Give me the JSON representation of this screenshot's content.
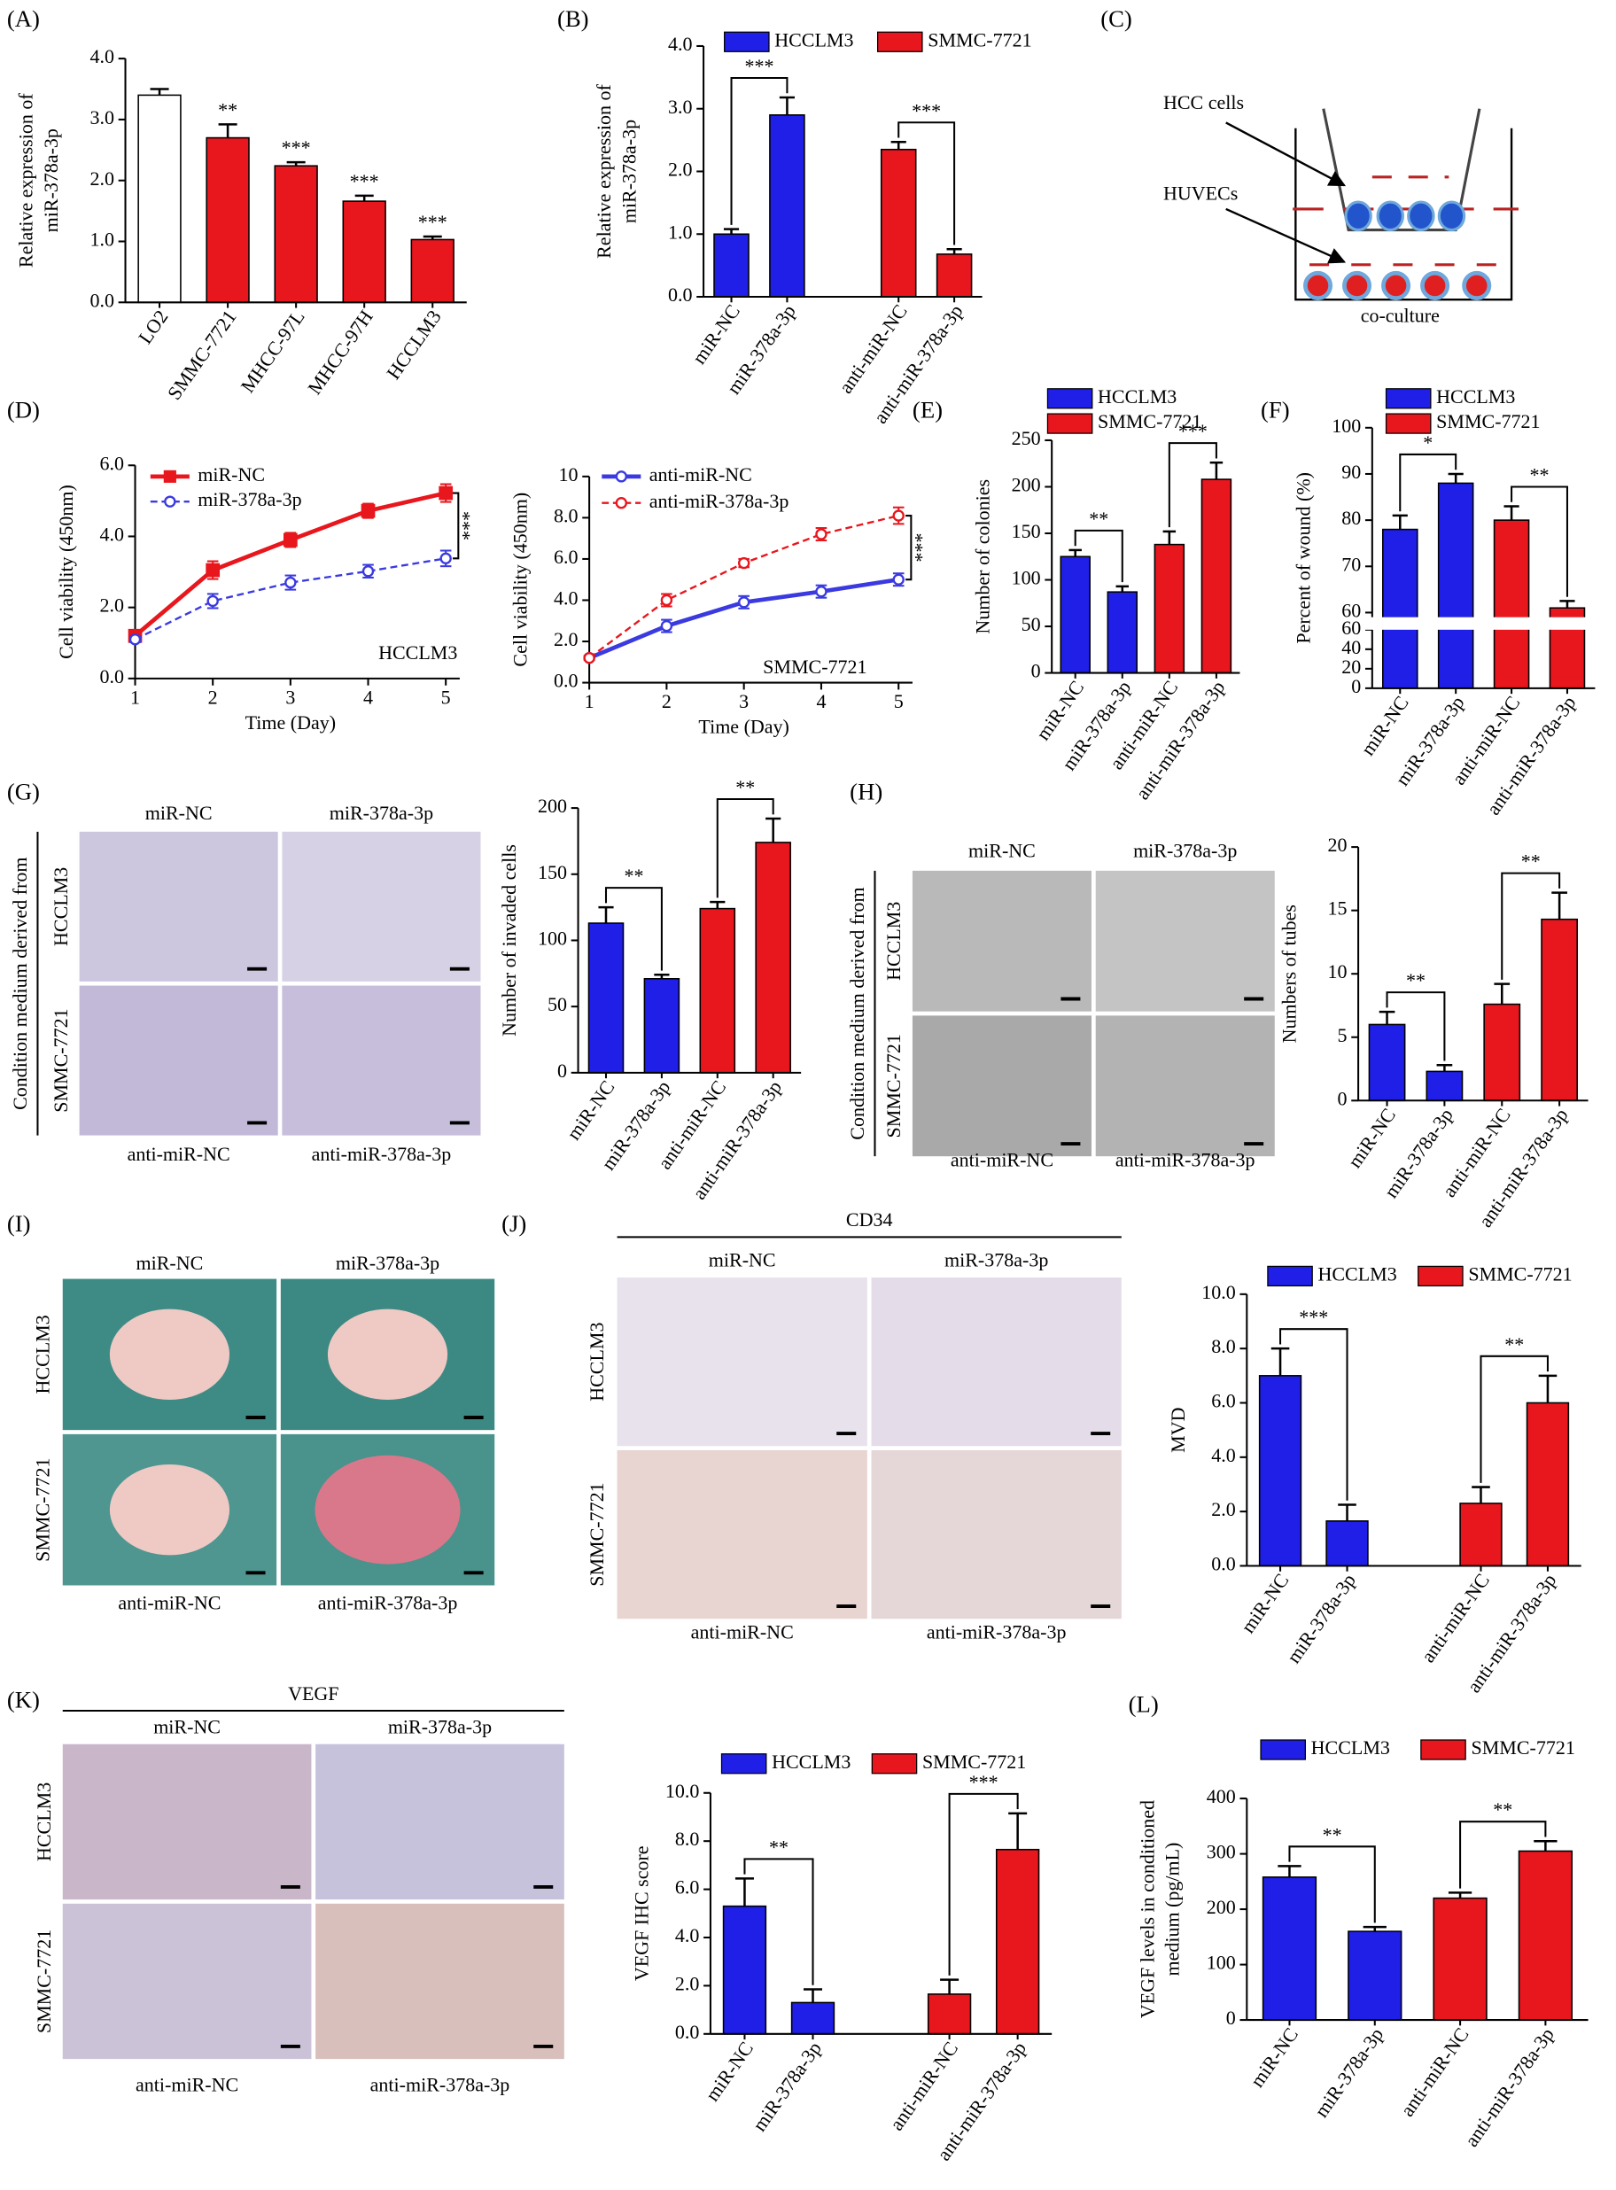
{
  "chart_data": [
    {
      "type": "bar",
      "panel": "(A)",
      "y_label": [
        "Relative expression of",
        "miR-378a-3p"
      ],
      "categories": [
        "LO2",
        "SMMC-7721",
        "MHCC-97L",
        "MHCC-97H",
        "HCCLM3"
      ],
      "values": [
        3.4,
        2.7,
        2.24,
        1.66,
        1.03
      ],
      "errors": [
        0.1,
        0.22,
        0.06,
        0.09,
        0.05
      ],
      "colors": [
        "#ffffff",
        "#e8161d",
        "#e8161d",
        "#e8161d",
        "#e8161d"
      ],
      "significance": [
        null,
        "**",
        "***",
        "***",
        "***"
      ],
      "ylim": [
        0,
        4
      ],
      "yticks": [
        {
          "value": 0,
          "label": "0.0"
        },
        {
          "value": 1,
          "label": "1.0"
        },
        {
          "value": 2,
          "label": "2.0"
        },
        {
          "value": 3,
          "label": "3.0"
        },
        {
          "value": 4,
          "label": "4.0"
        }
      ]
    },
    {
      "type": "bar",
      "panel": "(B)",
      "y_label": [
        "Relative expression of",
        "miR-378a-3p"
      ],
      "categories": [
        "miR-NC",
        "miR-378a-3p",
        "anti-miR-NC",
        "anti-miR-378a-3p"
      ],
      "series": [
        {
          "name": "HCCLM3",
          "color": "#1f1fe8",
          "values": [
            1.0,
            2.9,
            null,
            null
          ],
          "errors": [
            0.08,
            0.28,
            null,
            null
          ],
          "significance": "***"
        },
        {
          "name": "SMMC-7721",
          "color": "#e8161d",
          "values": [
            null,
            null,
            2.35,
            0.68
          ],
          "errors": [
            null,
            null,
            0.12,
            0.08
          ],
          "significance": "***"
        }
      ],
      "ylim": [
        0,
        4
      ],
      "yticks": [
        {
          "value": 0,
          "label": "0.0"
        },
        {
          "value": 1,
          "label": "1.0"
        },
        {
          "value": 2,
          "label": "2.0"
        },
        {
          "value": 3,
          "label": "3.0"
        },
        {
          "value": 4,
          "label": "4.0"
        }
      ]
    },
    {
      "type": "line",
      "panel": "(D)",
      "y_label": "Cell viability (450nm)",
      "x_label": "Time (Day)",
      "annotation": "HCCLM3",
      "significance": "***",
      "x": [
        1,
        2,
        3,
        4,
        5
      ],
      "xlim": [
        1,
        5
      ],
      "xticks": [
        1,
        2,
        3,
        4,
        5
      ],
      "series": [
        {
          "name": "miR-NC",
          "color": "#e8161d",
          "dashed": false,
          "marker": "square",
          "values": [
            1.2,
            3.05,
            3.9,
            4.72,
            5.22
          ],
          "errors": [
            0.08,
            0.25,
            0.2,
            0.2,
            0.25
          ]
        },
        {
          "name": "miR-378a-3p",
          "color": "#3a3ae0",
          "dashed": true,
          "marker": "circle",
          "values": [
            1.1,
            2.18,
            2.7,
            3.02,
            3.38
          ],
          "errors": [
            0.08,
            0.2,
            0.2,
            0.18,
            0.22
          ]
        }
      ],
      "ylim": [
        0,
        6
      ],
      "yticks": [
        {
          "value": 0,
          "label": "0.0"
        },
        {
          "value": 2,
          "label": "2.0"
        },
        {
          "value": 4,
          "label": "4.0"
        },
        {
          "value": 6,
          "label": "6.0"
        }
      ]
    },
    {
      "type": "line",
      "y_label": "Cell viability (450nm)",
      "x_label": "Time (Day)",
      "annotation": "SMMC-7721",
      "significance": "***",
      "x": [
        1,
        2,
        3,
        4,
        5
      ],
      "xlim": [
        1,
        5
      ],
      "xticks": [
        1,
        2,
        3,
        4,
        5
      ],
      "series": [
        {
          "name": "anti-miR-NC",
          "color": "#3a3ae0",
          "dashed": false,
          "marker": "circle",
          "values": [
            1.2,
            2.75,
            3.9,
            4.42,
            5.0
          ],
          "errors": [
            0.1,
            0.3,
            0.3,
            0.3,
            0.3
          ]
        },
        {
          "name": "anti-miR-378a-3p",
          "color": "#e8161d",
          "dashed": true,
          "marker": "circle",
          "values": [
            1.2,
            4.0,
            5.8,
            7.2,
            8.1
          ],
          "errors": [
            0.1,
            0.3,
            0.2,
            0.3,
            0.4
          ]
        }
      ],
      "ylim": [
        0,
        10
      ],
      "yticks": [
        {
          "value": 0,
          "label": "0.0"
        },
        {
          "value": 2,
          "label": "2.0"
        },
        {
          "value": 4,
          "label": "4.0"
        },
        {
          "value": 6,
          "label": "6.0"
        },
        {
          "value": 8,
          "label": "8.0"
        },
        10
      ]
    },
    {
      "type": "bar",
      "panel": "(E)",
      "y_label": "Number of colonies",
      "categories": [
        "miR-NC",
        "miR-378a-3p",
        "anti-miR-NC",
        "anti-miR-378a-3p"
      ],
      "series": [
        {
          "name": "HCCLM3",
          "color": "#1f1fe8",
          "values": [
            125,
            87,
            null,
            null
          ],
          "errors": [
            7,
            6,
            null,
            null
          ],
          "significance": "**"
        },
        {
          "name": "SMMC-7721",
          "color": "#e8161d",
          "values": [
            null,
            null,
            138,
            208
          ],
          "errors": [
            null,
            null,
            14,
            18
          ],
          "significance": "***"
        }
      ],
      "ylim": [
        0,
        250
      ],
      "yticks": [
        0,
        50,
        100,
        150,
        200,
        250
      ]
    },
    {
      "type": "bar",
      "panel": "(F)",
      "y_label": "Percent of wound (%)",
      "categories": [
        "miR-NC",
        "miR-378a-3p",
        "anti-miR-NC",
        "anti-miR-378a-3p"
      ],
      "series": [
        {
          "name": "HCCLM3",
          "color": "#1f1fe8",
          "values": [
            78,
            88,
            null,
            null
          ],
          "errors": [
            3,
            2,
            null,
            null
          ],
          "significance": "*"
        },
        {
          "name": "SMMC-7721",
          "color": "#e8161d",
          "values": [
            null,
            null,
            80,
            61
          ],
          "errors": [
            null,
            null,
            3,
            1.5
          ],
          "significance": "**"
        }
      ],
      "segments": [
        {
          "ylim": [
            0,
            60
          ],
          "yticks": [
            0,
            20,
            40,
            60
          ]
        },
        {
          "ylim": [
            59,
            100
          ],
          "yticks": [
            60,
            70,
            80,
            90,
            100
          ]
        }
      ]
    },
    {
      "type": "bar",
      "y_label": "Number of invaded cells",
      "categories": [
        "miR-NC",
        "miR-378a-3p",
        "anti-miR-NC",
        "anti-miR-378a-3p"
      ],
      "series": [
        {
          "color": "#1f1fe8",
          "values": [
            113,
            71,
            null,
            null
          ],
          "errors": [
            12,
            3,
            null,
            null
          ],
          "significance": "**"
        },
        {
          "color": "#e8161d",
          "values": [
            null,
            null,
            124,
            174
          ],
          "errors": [
            null,
            null,
            5,
            18
          ],
          "significance": "**"
        }
      ],
      "ylim": [
        0,
        200
      ],
      "yticks": [
        0,
        50,
        100,
        150,
        200
      ]
    },
    {
      "type": "bar",
      "y_label": "Numbers of tubes",
      "categories": [
        "miR-NC",
        "miR-378a-3p",
        "anti-miR-NC",
        "anti-miR-378a-3p"
      ],
      "series": [
        {
          "color": "#1f1fe8",
          "values": [
            6,
            2.3,
            null,
            null
          ],
          "errors": [
            1,
            0.5,
            null,
            null
          ],
          "significance": "**"
        },
        {
          "color": "#e8161d",
          "values": [
            null,
            null,
            7.6,
            14.3
          ],
          "errors": [
            null,
            null,
            1.6,
            2.1
          ],
          "significance": "**"
        }
      ],
      "ylim": [
        0,
        20
      ],
      "yticks": [
        0,
        5,
        10,
        15,
        20
      ]
    },
    {
      "type": "bar",
      "y_label": "MVD",
      "categories": [
        "miR-NC",
        "miR-378a-3p",
        "anti-miR-NC",
        "anti-miR-378a-3p"
      ],
      "series": [
        {
          "name": "HCCLM3",
          "color": "#1f1fe8",
          "values": [
            7.0,
            1.65,
            null,
            null
          ],
          "errors": [
            1.0,
            0.6,
            null,
            null
          ],
          "significance": "***"
        },
        {
          "name": "SMMC-7721",
          "color": "#e8161d",
          "values": [
            null,
            null,
            2.3,
            6.0
          ],
          "errors": [
            null,
            null,
            0.6,
            1.0
          ],
          "significance": "**"
        }
      ],
      "ylim": [
        0,
        10
      ],
      "yticks": [
        {
          "value": 0,
          "label": "0.0"
        },
        {
          "value": 2,
          "label": "2.0"
        },
        {
          "value": 4,
          "label": "4.0"
        },
        {
          "value": 6,
          "label": "6.0"
        },
        {
          "value": 8,
          "label": "8.0"
        },
        {
          "value": 10,
          "label": "10.0"
        }
      ]
    },
    {
      "type": "bar",
      "y_label": "VEGF IHC score",
      "categories": [
        "miR-NC",
        "miR-378a-3p",
        "anti-miR-NC",
        "anti-miR-378a-3p"
      ],
      "series": [
        {
          "name": "HCCLM3",
          "color": "#1f1fe8",
          "values": [
            5.3,
            1.3,
            null,
            null
          ],
          "errors": [
            1.15,
            0.55,
            null,
            null
          ],
          "significance": "**"
        },
        {
          "name": "SMMC-7721",
          "color": "#e8161d",
          "values": [
            null,
            null,
            1.65,
            7.65
          ],
          "errors": [
            null,
            null,
            0.6,
            1.5
          ],
          "significance": "***"
        }
      ],
      "ylim": [
        0,
        10
      ],
      "yticks": [
        {
          "value": 0,
          "label": "0.0"
        },
        {
          "value": 2,
          "label": "2.0"
        },
        {
          "value": 4,
          "label": "4.0"
        },
        {
          "value": 6,
          "label": "6.0"
        },
        {
          "value": 8,
          "label": "8.0"
        },
        {
          "value": 10,
          "label": "10.0"
        }
      ]
    },
    {
      "type": "bar",
      "panel": "(L)",
      "y_label": [
        "VEGF levels in conditioned",
        "medium (pg/mL)"
      ],
      "categories": [
        "miR-NC",
        "miR-378a-3p",
        "anti-miR-NC",
        "anti-miR-378a-3p"
      ],
      "series": [
        {
          "name": "HCCLM3",
          "color": "#1f1fe8",
          "values": [
            258,
            160,
            null,
            null
          ],
          "errors": [
            20,
            8,
            null,
            null
          ],
          "significance": "**"
        },
        {
          "name": "SMMC-7721",
          "color": "#e8161d",
          "values": [
            null,
            null,
            220,
            305
          ],
          "errors": [
            null,
            null,
            10,
            18
          ],
          "significance": "**"
        }
      ],
      "ylim": [
        0,
        400
      ],
      "yticks": [
        0,
        100,
        200,
        300,
        400
      ]
    }
  ],
  "image_panels": [
    {
      "panel": "(C)",
      "labels": [
        "HCC cells",
        "HUVECs"
      ],
      "caption": "co-culture"
    },
    {
      "panel": "(G)",
      "side_label": "Condition medium derived from",
      "columns": [
        "miR-NC",
        "miR-378a-3p"
      ],
      "bottom": [
        "anti-miR-NC",
        "anti-miR-378a-3p"
      ],
      "rows": [
        "HCCLM3",
        "SMMC-7721"
      ]
    },
    {
      "panel": "(H)",
      "side_label": "Condition medium derived from",
      "columns": [
        "miR-NC",
        "miR-378a-3p"
      ],
      "bottom": [
        "anti-miR-NC",
        "anti-miR-378a-3p"
      ],
      "rows": [
        "HCCLM3",
        "SMMC-7721"
      ]
    },
    {
      "panel": "(I)",
      "columns": [
        "miR-NC",
        "miR-378a-3p"
      ],
      "bottom": [
        "anti-miR-NC",
        "anti-miR-378a-3p"
      ],
      "rows": [
        "HCCLM3",
        "SMMC-7721"
      ]
    },
    {
      "panel": "(J)",
      "title": "CD34",
      "columns": [
        "miR-NC",
        "miR-378a-3p"
      ],
      "bottom": [
        "anti-miR-NC",
        "anti-miR-378a-3p"
      ],
      "rows": [
        "HCCLM3",
        "SMMC-7721"
      ]
    },
    {
      "panel": "(K)",
      "title": "VEGF",
      "columns": [
        "miR-NC",
        "miR-378a-3p"
      ],
      "bottom": [
        "anti-miR-NC",
        "anti-miR-378a-3p"
      ],
      "rows": [
        "HCCLM3",
        "SMMC-7721"
      ]
    }
  ]
}
